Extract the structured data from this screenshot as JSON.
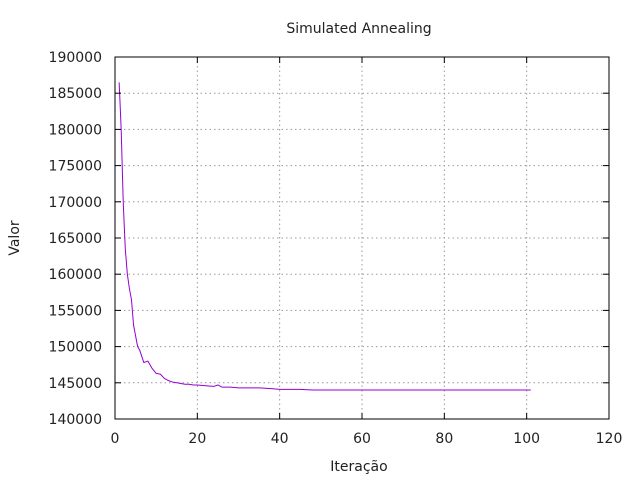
{
  "chart_data": {
    "type": "line",
    "title": "Simulated Annealing",
    "xlabel": "Iteração",
    "ylabel": "Valor",
    "xlim": [
      0,
      120
    ],
    "ylim": [
      140000,
      190000
    ],
    "x_ticks": [
      0,
      20,
      40,
      60,
      80,
      100,
      120
    ],
    "y_ticks": [
      140000,
      145000,
      150000,
      155000,
      160000,
      165000,
      170000,
      175000,
      180000,
      185000,
      190000
    ],
    "grid": true,
    "line_color": "#9400d3",
    "series": [
      {
        "x": [
          1,
          1.2,
          1.5,
          2,
          2.3,
          2.5,
          3,
          3.5,
          4,
          4.5,
          5,
          5.5,
          6,
          7,
          8,
          9,
          10,
          11,
          12,
          13,
          14,
          15,
          16,
          17,
          18,
          19,
          20,
          22,
          24,
          25,
          26,
          28,
          30,
          32,
          35,
          38,
          40,
          45,
          48,
          50,
          60,
          70,
          80,
          90,
          101
        ],
        "y": [
          186500,
          184000,
          180000,
          170000,
          166000,
          163500,
          160000,
          158000,
          156500,
          153000,
          151500,
          150000,
          149500,
          147800,
          148000,
          147000,
          146300,
          146200,
          145600,
          145300,
          145100,
          145000,
          144900,
          144800,
          144800,
          144700,
          144700,
          144600,
          144500,
          144700,
          144400,
          144400,
          144300,
          144300,
          144300,
          144200,
          144100,
          144100,
          144000,
          144000,
          144000,
          144000,
          144000,
          144000,
          144000
        ]
      }
    ]
  }
}
